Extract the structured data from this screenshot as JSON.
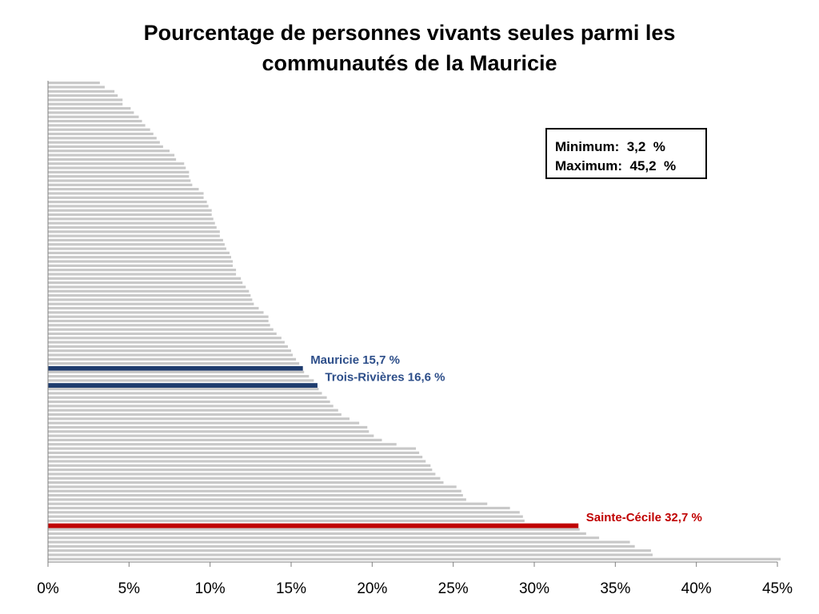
{
  "chart_data": {
    "type": "bar",
    "orientation": "horizontal",
    "title": [
      "Pourcentage de personnes vivants seules parmi les",
      "communautés de la Mauricie"
    ],
    "xlabel": "",
    "ylabel": "",
    "xlim": [
      0,
      45
    ],
    "xticks": [
      "0%",
      "5%",
      "10%",
      "15%",
      "20%",
      "25%",
      "30%",
      "35%",
      "40%",
      "45%"
    ],
    "grid": false,
    "bar_color": "#c8c8c8",
    "values": [
      3.2,
      3.5,
      4.1,
      4.3,
      4.6,
      4.6,
      5.1,
      5.3,
      5.6,
      5.8,
      6.0,
      6.3,
      6.5,
      6.7,
      6.9,
      7.1,
      7.5,
      7.8,
      7.9,
      8.4,
      8.5,
      8.7,
      8.7,
      8.8,
      8.9,
      9.3,
      9.6,
      9.6,
      9.8,
      9.9,
      10.1,
      10.1,
      10.2,
      10.3,
      10.4,
      10.6,
      10.6,
      10.8,
      10.9,
      11.0,
      11.2,
      11.3,
      11.4,
      11.4,
      11.6,
      11.6,
      11.9,
      12.0,
      12.2,
      12.4,
      12.5,
      12.6,
      12.7,
      13.0,
      13.3,
      13.6,
      13.6,
      13.7,
      13.9,
      14.1,
      14.4,
      14.6,
      14.8,
      15.0,
      15.1,
      15.3,
      15.5,
      15.7,
      15.8,
      16.1,
      16.4,
      16.6,
      16.7,
      16.9,
      17.2,
      17.4,
      17.6,
      17.9,
      18.1,
      18.6,
      19.2,
      19.7,
      19.8,
      20.1,
      20.6,
      21.5,
      22.7,
      22.9,
      23.1,
      23.3,
      23.6,
      23.7,
      23.9,
      24.2,
      24.4,
      25.2,
      25.5,
      25.6,
      25.8,
      27.1,
      28.5,
      29.1,
      29.3,
      29.4,
      32.7,
      32.8,
      33.2,
      34.0,
      35.9,
      36.2,
      37.2,
      37.3,
      45.2
    ],
    "highlights": [
      {
        "index": 67,
        "label": "Mauricie",
        "value_text": "15,7  %",
        "color": "#1f3c6e",
        "text_color": "#2e4f8a"
      },
      {
        "index": 71,
        "label": "Trois-Rivières",
        "value_text": "16,6  %",
        "color": "#1f3c6e",
        "text_color": "#2e4f8a"
      },
      {
        "index": 104,
        "label": "Sainte-Cécile",
        "value_text": "32,7  %",
        "color": "#c00000",
        "text_color": "#c00000"
      }
    ],
    "annotations": {
      "min_label": "Minimum:  3,2  %",
      "max_label": "Maximum:  45,2  %"
    }
  }
}
